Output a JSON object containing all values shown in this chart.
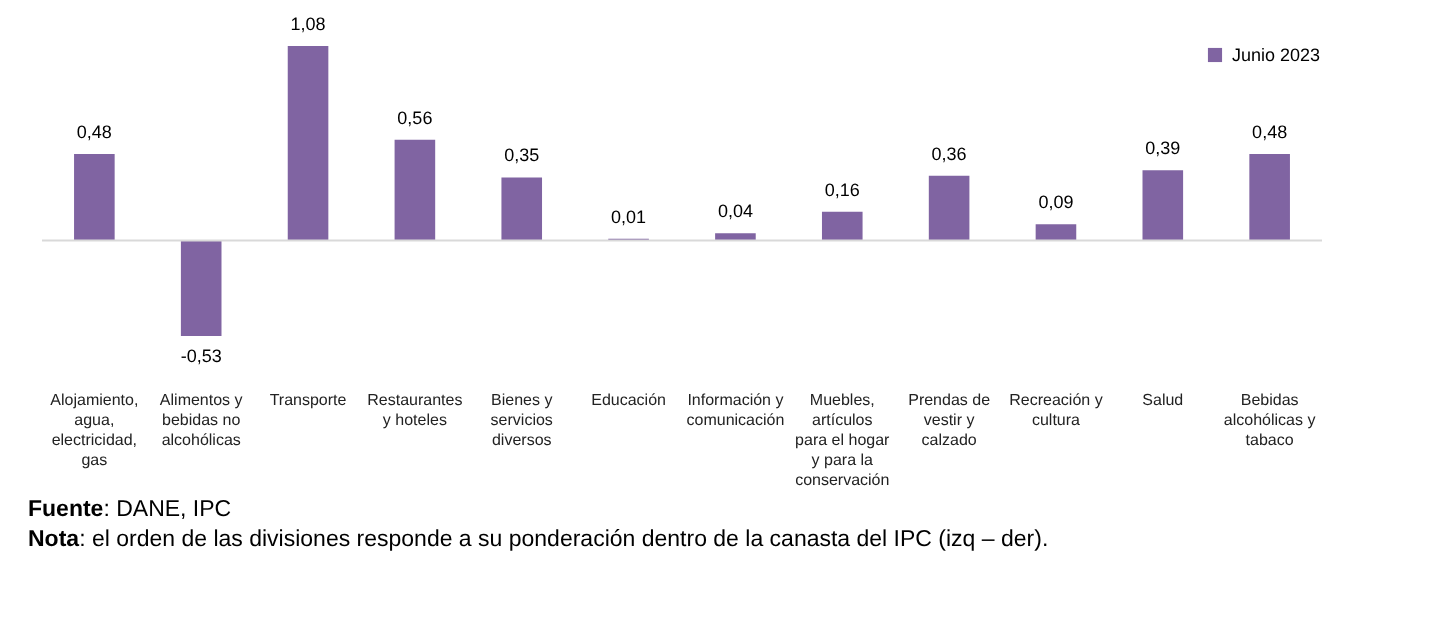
{
  "chart_data": {
    "type": "bar",
    "categories": [
      "Alojamiento, agua, electricidad, gas",
      "Alimentos y bebidas no alcohólicas",
      "Transporte",
      "Restaurantes y hoteles",
      "Bienes y servicios diversos",
      "Educación",
      "Información y comunicación",
      "Muebles, artículos para el hogar y para la conservación",
      "Prendas de vestir y calzado",
      "Recreación y cultura",
      "Salud",
      "Bebidas alcohólicas y tabaco"
    ],
    "series": [
      {
        "name": "Junio 2023",
        "color": "#8064a2",
        "values": [
          0.48,
          -0.53,
          1.08,
          0.56,
          0.35,
          0.01,
          0.04,
          0.16,
          0.36,
          0.09,
          0.39,
          0.48
        ],
        "value_labels": [
          "0,48",
          "-0,53",
          "1,08",
          "0,56",
          "0,35",
          "0,01",
          "0,04",
          "0,16",
          "0,36",
          "0,09",
          "0,39",
          "0,48"
        ]
      }
    ],
    "legend": "top right",
    "annotations": [
      "Fuente: DANE, IPC",
      "Nota: el orden de las divisiones responde a su ponderación dentro de la canasta del IPC (izq – der)."
    ]
  }
}
